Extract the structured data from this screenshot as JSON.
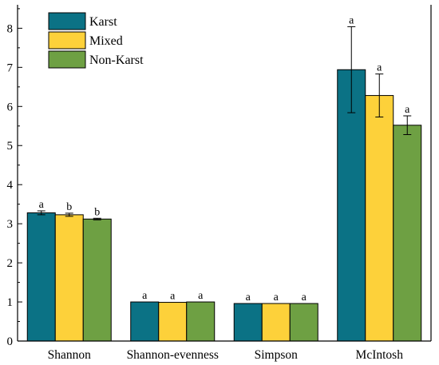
{
  "chart_data": {
    "type": "bar",
    "title": "",
    "xlabel": "",
    "ylabel": "",
    "categories": [
      "Shannon",
      "Shannon-evenness",
      "Simpson",
      "McIntosh"
    ],
    "ylim": [
      0,
      8.6
    ],
    "yticks": [
      0,
      1,
      2,
      3,
      4,
      5,
      6,
      7,
      8
    ],
    "grid": false,
    "legend_position": "top-left",
    "series": [
      {
        "name": "Karst",
        "color": "#0b7285",
        "values": [
          3.28,
          1.0,
          0.96,
          6.94
        ],
        "errors": [
          0.05,
          0.0,
          0.0,
          1.1
        ],
        "labels": [
          "a",
          "a",
          "a",
          "a"
        ]
      },
      {
        "name": "Mixed",
        "color": "#fdd13a",
        "values": [
          3.23,
          0.99,
          0.96,
          6.28
        ],
        "errors": [
          0.04,
          0.0,
          0.0,
          0.55
        ],
        "labels": [
          "b",
          "a",
          "a",
          "a"
        ]
      },
      {
        "name": "Non-Karst",
        "color": "#6ea043",
        "values": [
          3.12,
          1.0,
          0.96,
          5.52
        ],
        "errors": [
          0.02,
          0.0,
          0.0,
          0.24
        ],
        "labels": [
          "b",
          "a",
          "a",
          "a"
        ]
      }
    ]
  }
}
